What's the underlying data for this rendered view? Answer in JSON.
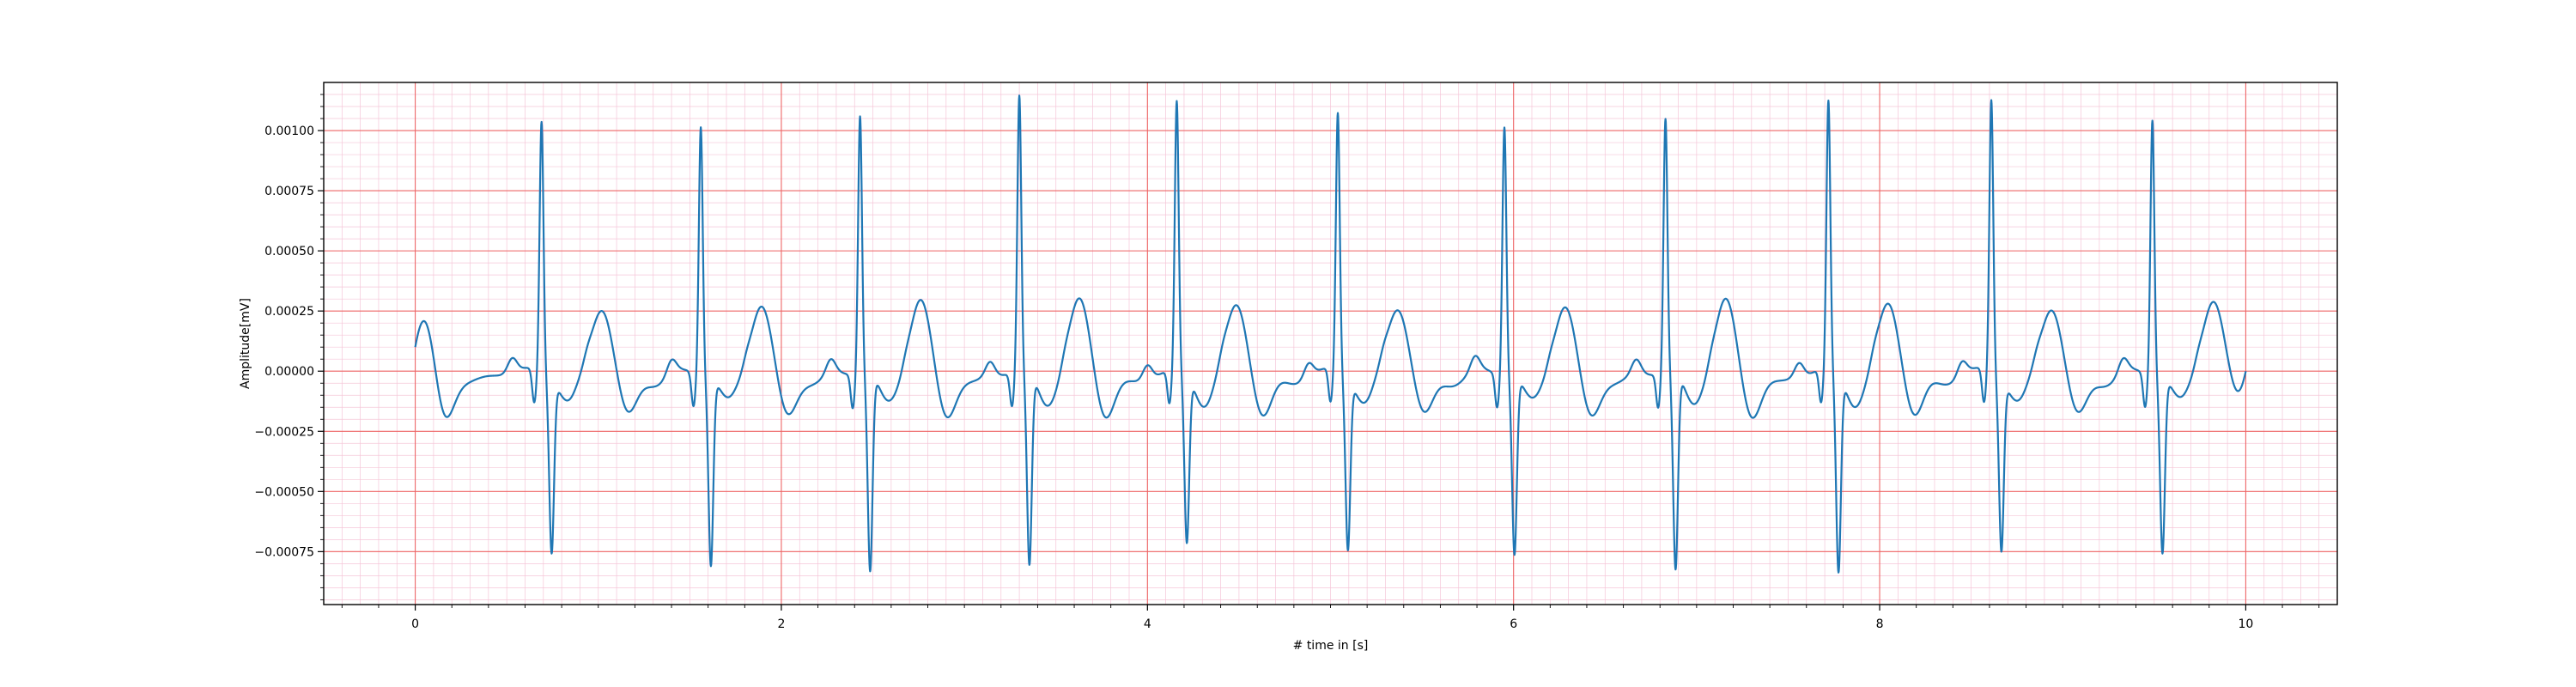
{
  "chart_data": {
    "type": "line",
    "title": "",
    "xlabel": "# time in [s]",
    "ylabel": "Amplitude[mV]",
    "xlim": [
      -0.5,
      10.5
    ],
    "ylim": [
      -0.00097,
      0.0012
    ],
    "x_ticks": [
      0,
      2,
      4,
      6,
      8,
      10
    ],
    "x_tick_labels": [
      "0",
      "2",
      "4",
      "6",
      "8",
      "10"
    ],
    "y_ticks": [
      0.001,
      0.00075,
      0.0005,
      0.00025,
      0,
      -0.00025,
      -0.0005,
      -0.00075
    ],
    "y_tick_labels": [
      "0.00100",
      "0.00075",
      "0.00050",
      "0.00025",
      "0.00000",
      "−0.00025",
      "−0.00050",
      "−0.00075"
    ],
    "grid": {
      "major": true,
      "minor": true,
      "major_color": "#ee6666",
      "minor_color": "#f5c6d8"
    },
    "legend": "none",
    "series": [
      {
        "color": "#1f77b4",
        "beats": [
          {
            "r_time": 0.69,
            "r_peak": 0.00101,
            "s_min": -0.00076,
            "t_peak": 0.00027
          },
          {
            "r_time": 1.56,
            "r_peak": 0.001,
            "s_min": -0.00082,
            "t_peak": 0.00028
          },
          {
            "r_time": 2.43,
            "r_peak": 0.00104,
            "s_min": -0.00086,
            "t_peak": 0.00029
          },
          {
            "r_time": 3.3,
            "r_peak": 0.00111,
            "s_min": -0.00084,
            "t_peak": 0.00029
          },
          {
            "r_time": 4.16,
            "r_peak": 0.00108,
            "s_min": -0.00074,
            "t_peak": 0.00027
          },
          {
            "r_time": 5.04,
            "r_peak": 0.00104,
            "s_min": -0.00075,
            "t_peak": 0.00027
          },
          {
            "r_time": 5.95,
            "r_peak": 0.001,
            "s_min": -0.00078,
            "t_peak": 0.00027
          },
          {
            "r_time": 6.83,
            "r_peak": 0.00102,
            "s_min": -0.00086,
            "t_peak": 0.00029
          },
          {
            "r_time": 7.72,
            "r_peak": 0.00108,
            "s_min": -0.00086,
            "t_peak": 0.00028
          },
          {
            "r_time": 8.61,
            "r_peak": 0.0011,
            "s_min": -0.00075,
            "t_peak": 0.00027
          },
          {
            "r_time": 9.49,
            "r_peak": 0.00103,
            "s_min": -0.00077,
            "t_peak": 0.00028
          }
        ],
        "start": {
          "x": 0.0,
          "y": 0.0001,
          "initial_t_peak": 0.00023
        },
        "end": {
          "x": 10.0,
          "y": 0.0
        }
      }
    ]
  }
}
